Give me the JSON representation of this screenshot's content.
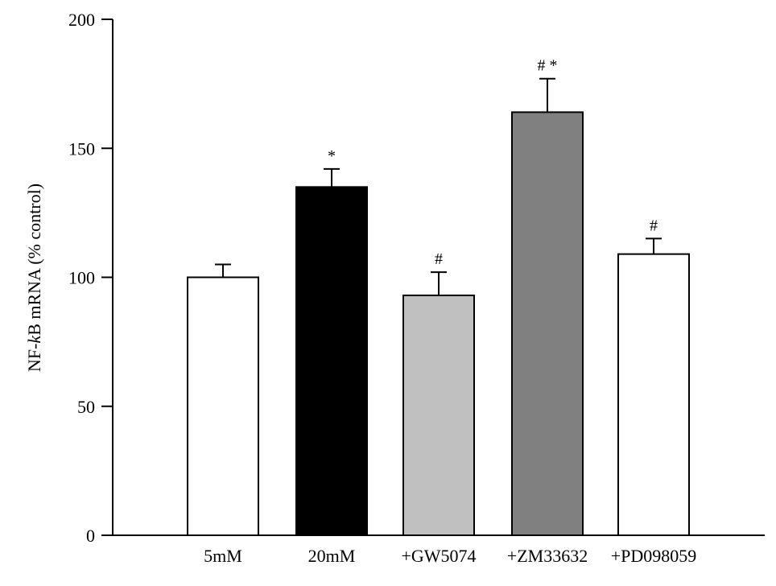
{
  "chart_data": {
    "type": "bar",
    "ylabel_parts": [
      "NF-",
      "k",
      "B mRNA (% control)"
    ],
    "ylim": [
      0,
      200
    ],
    "yticks": [
      0,
      50,
      100,
      150,
      200
    ],
    "categories": [
      "5mM",
      "20mM",
      "+GW5074",
      "+ZM33632",
      "+PD098059"
    ],
    "values": [
      100,
      135,
      93,
      164,
      109
    ],
    "errors": [
      5,
      7,
      9,
      13,
      6
    ],
    "annotations": [
      "",
      "*",
      "#",
      "# *",
      "#"
    ],
    "colors": [
      "#ffffff",
      "#000000",
      "#c0c0c0",
      "#808080",
      "#ffffff"
    ],
    "grid": false,
    "legend": "none"
  }
}
